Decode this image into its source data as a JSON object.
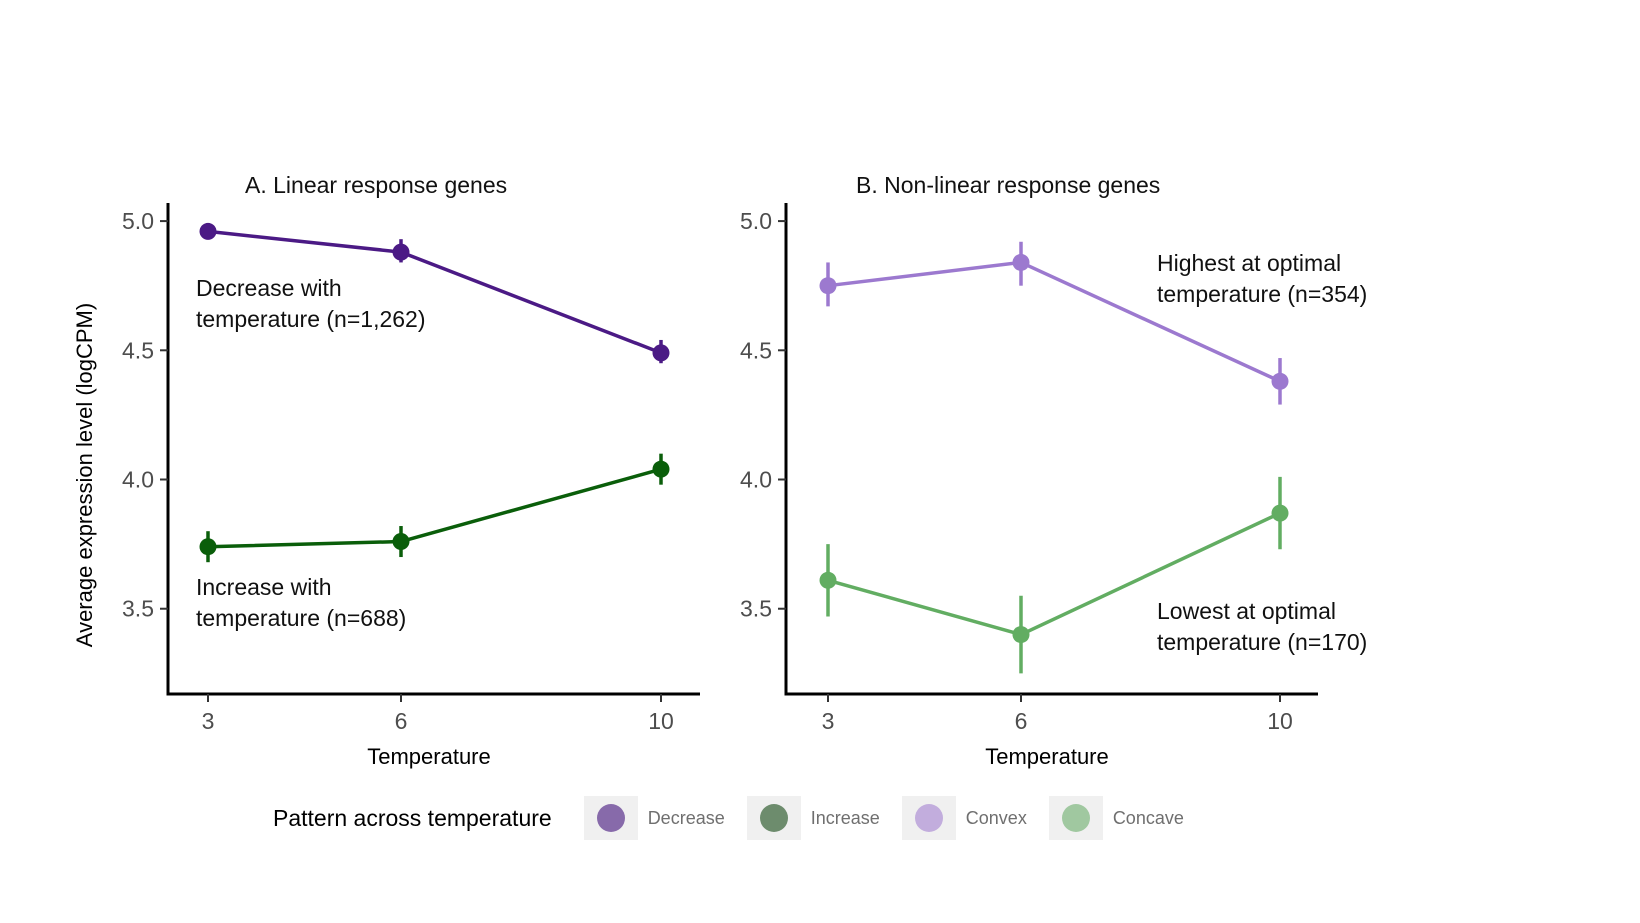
{
  "chart_data": [
    {
      "type": "line",
      "title": "A.  Linear response genes",
      "xlabel": "Temperature",
      "ylabel": "Average expression level (logCPM)",
      "x": [
        3,
        6,
        10
      ],
      "x_ticks": [
        "3",
        "6",
        "10"
      ],
      "y_ticks": [
        "3.5",
        "4.0",
        "4.5",
        "5.0"
      ],
      "ylim": [
        3.17,
        5.07
      ],
      "grid": false,
      "series": [
        {
          "name": "Decrease",
          "color": "#4b1a85",
          "values": [
            4.96,
            4.88,
            4.49
          ],
          "err_low": [
            4.95,
            4.84,
            4.45
          ],
          "err_high": [
            4.97,
            4.93,
            4.54
          ]
        },
        {
          "name": "Increase",
          "color": "#0a5e0a",
          "values": [
            3.74,
            3.76,
            4.04
          ],
          "err_low": [
            3.68,
            3.7,
            3.98
          ],
          "err_high": [
            3.8,
            3.82,
            4.1
          ]
        }
      ],
      "annotations": [
        {
          "lines": [
            "Decrease with",
            "temperature (n=1,262)"
          ],
          "series": "Decrease"
        },
        {
          "lines": [
            "Increase with",
            "temperature (n=688)"
          ],
          "series": "Increase"
        }
      ]
    },
    {
      "type": "line",
      "title": "B.  Non-linear response genes",
      "xlabel": "Temperature",
      "ylabel": "",
      "x": [
        3,
        6,
        10
      ],
      "x_ticks": [
        "3",
        "6",
        "10"
      ],
      "y_ticks": [
        "3.5",
        "4.0",
        "4.5",
        "5.0"
      ],
      "ylim": [
        3.17,
        5.07
      ],
      "grid": false,
      "series": [
        {
          "name": "Convex",
          "color": "#9c79cf",
          "values": [
            4.75,
            4.84,
            4.38
          ],
          "err_low": [
            4.67,
            4.75,
            4.29
          ],
          "err_high": [
            4.84,
            4.92,
            4.47
          ]
        },
        {
          "name": "Concave",
          "color": "#62ad62",
          "values": [
            3.61,
            3.4,
            3.87
          ],
          "err_low": [
            3.47,
            3.25,
            3.73
          ],
          "err_high": [
            3.75,
            3.55,
            4.01
          ]
        }
      ],
      "annotations": [
        {
          "lines": [
            "Highest at optimal",
            "temperature (n=354)"
          ],
          "series": "Convex"
        },
        {
          "lines": [
            "Lowest at optimal",
            "temperature (n=170)"
          ],
          "series": "Concave"
        }
      ]
    }
  ],
  "legend": {
    "title": "Pattern across temperature",
    "items": [
      {
        "label": "Decrease",
        "color": "#876aaa"
      },
      {
        "label": "Increase",
        "color": "#6d8c6d"
      },
      {
        "label": "Convex",
        "color": "#c2addd"
      },
      {
        "label": "Concave",
        "color": "#a0c8a0"
      }
    ]
  }
}
